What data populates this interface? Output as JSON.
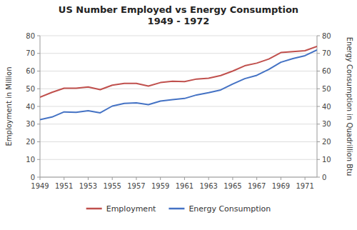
{
  "chart_data": {
    "type": "line",
    "title": "US Number Employed vs Energy Consumption\n1949 - 1972",
    "x": [
      1949,
      1950,
      1951,
      1952,
      1953,
      1954,
      1955,
      1956,
      1957,
      1958,
      1959,
      1960,
      1961,
      1962,
      1963,
      1964,
      1965,
      1966,
      1967,
      1968,
      1969,
      1970,
      1971,
      1972
    ],
    "xlim": [
      1949,
      1972
    ],
    "xticks": [
      1949,
      1951,
      1953,
      1955,
      1957,
      1959,
      1961,
      1963,
      1965,
      1967,
      1969,
      1971
    ],
    "ylabel": "Employment in Million",
    "y2label": "Energy Consumption in Quadrillion Btu",
    "ylim": [
      0,
      80
    ],
    "yticks": [
      0,
      10,
      20,
      30,
      40,
      50,
      60,
      70,
      80
    ],
    "y2lim": [
      0,
      80
    ],
    "y2ticks": [
      0,
      10,
      20,
      30,
      40,
      50,
      60,
      70,
      80
    ],
    "grid": true,
    "legend": "bottom",
    "series": [
      {
        "name": "Employment",
        "color": "#C0504D",
        "values": [
          45.2,
          48.0,
          50.3,
          50.3,
          51.0,
          49.5,
          52.0,
          53.0,
          53.0,
          51.5,
          53.5,
          54.2,
          54.0,
          55.5,
          56.0,
          57.5,
          60.0,
          63.0,
          64.5,
          66.8,
          70.5,
          71.0,
          71.5,
          74.0
        ]
      },
      {
        "name": "Energy Consumption",
        "color": "#4472C4",
        "axis": "y2",
        "values": [
          32.5,
          34.0,
          36.9,
          36.7,
          37.6,
          36.4,
          40.2,
          41.7,
          42.0,
          41.0,
          43.0,
          43.8,
          44.5,
          46.5,
          47.8,
          49.3,
          52.7,
          55.7,
          57.6,
          61.0,
          65.0,
          67.1,
          68.7,
          72.0
        ]
      }
    ]
  }
}
